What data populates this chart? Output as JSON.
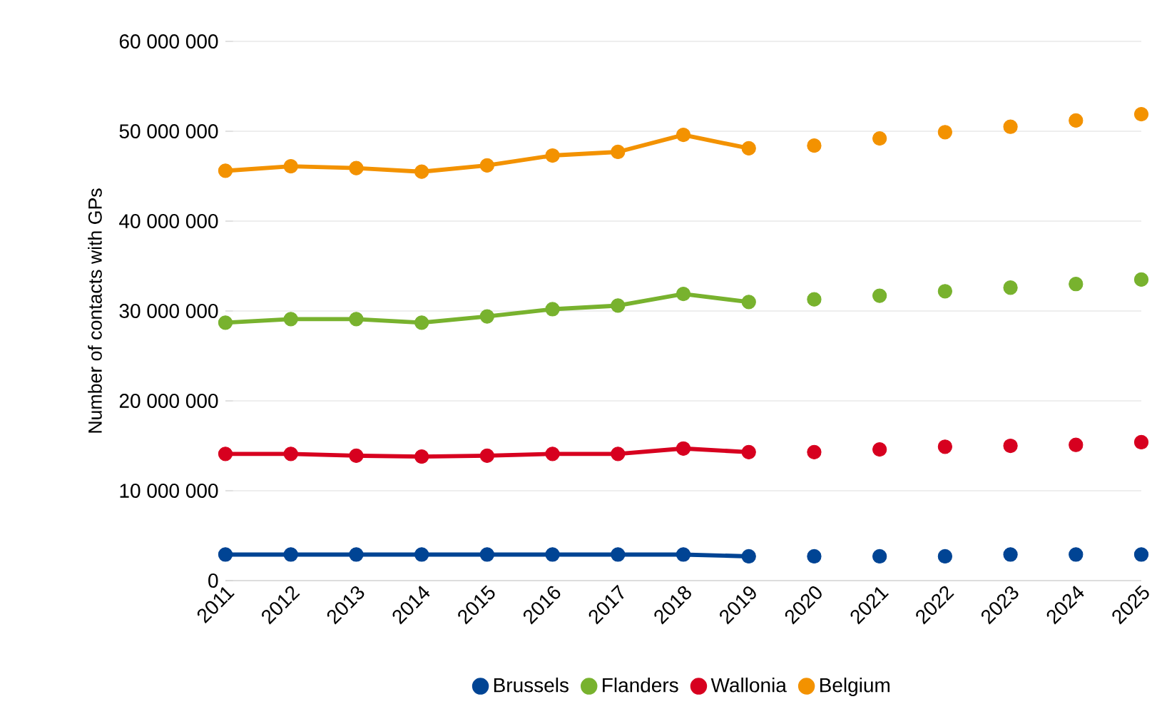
{
  "chart_data": {
    "type": "line",
    "ylabel": "Number of contacts with GPs",
    "categories": [
      "2011",
      "2012",
      "2013",
      "2014",
      "2015",
      "2016",
      "2017",
      "2018",
      "2019",
      "2020",
      "2021",
      "2022",
      "2023",
      "2024",
      "2025"
    ],
    "series": [
      {
        "name": "Brussels",
        "color": "#004494",
        "type": "line",
        "values": [
          2900000,
          2900000,
          2900000,
          2900000,
          2900000,
          2900000,
          2900000,
          2900000,
          2700000,
          null,
          null,
          null,
          null,
          null,
          null
        ]
      },
      {
        "name": "Flanders",
        "color": "#78b22e",
        "type": "line",
        "values": [
          28700000,
          29100000,
          29100000,
          28700000,
          29400000,
          30200000,
          30600000,
          31900000,
          31000000,
          null,
          null,
          null,
          null,
          null,
          null
        ]
      },
      {
        "name": "Wallonia",
        "color": "#d7001f",
        "type": "line",
        "values": [
          14100000,
          14100000,
          13900000,
          13800000,
          13900000,
          14100000,
          14100000,
          14700000,
          14300000,
          null,
          null,
          null,
          null,
          null,
          null
        ]
      },
      {
        "name": "Belgium",
        "color": "#f39200",
        "type": "line",
        "values": [
          45600000,
          46100000,
          45900000,
          45500000,
          46200000,
          47300000,
          47700000,
          49600000,
          48100000,
          null,
          null,
          null,
          null,
          null,
          null
        ]
      },
      {
        "color": "#004494",
        "type": "scatter",
        "values": [
          null,
          null,
          null,
          null,
          null,
          null,
          null,
          null,
          null,
          2700000,
          2700000,
          2700000,
          2900000,
          2900000,
          2900000
        ]
      },
      {
        "color": "#78b22e",
        "type": "scatter",
        "values": [
          null,
          null,
          null,
          null,
          null,
          null,
          null,
          null,
          null,
          31300000,
          31700000,
          32200000,
          32600000,
          33000000,
          33500000
        ]
      },
      {
        "color": "#d7001f",
        "type": "scatter",
        "values": [
          null,
          null,
          null,
          null,
          null,
          null,
          null,
          null,
          null,
          14300000,
          14600000,
          14900000,
          15000000,
          15100000,
          15400000
        ]
      },
      {
        "color": "#f39200",
        "type": "scatter",
        "values": [
          null,
          null,
          null,
          null,
          null,
          null,
          null,
          null,
          null,
          48400000,
          49200000,
          49900000,
          50500000,
          51200000,
          51900000
        ]
      }
    ],
    "ylim": [
      0,
      60000000
    ],
    "yticks": [
      0,
      {
        "value": 10000000,
        "label": "10 000 000"
      },
      {
        "value": 20000000,
        "label": "20 000 000"
      },
      {
        "value": 30000000,
        "label": "30 000 000"
      },
      {
        "value": 40000000,
        "label": "40 000 000"
      },
      {
        "value": 50000000,
        "label": "50 000 000"
      },
      {
        "value": 60000000,
        "label": "60 000 000"
      }
    ],
    "grid": "y",
    "legend": "bottom",
    "marker": "circle"
  }
}
